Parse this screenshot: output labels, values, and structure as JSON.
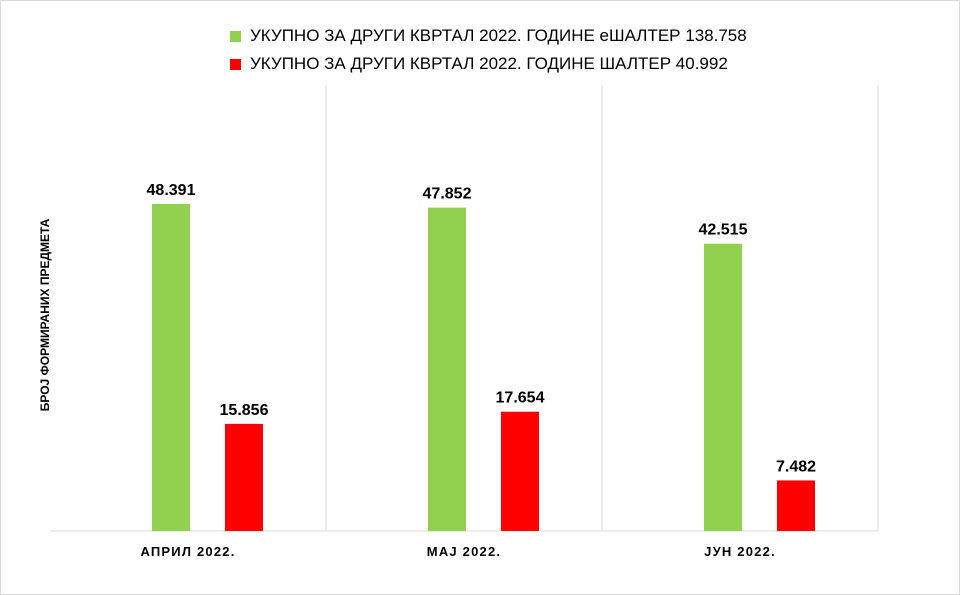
{
  "chart_data": {
    "type": "bar",
    "categories": [
      "АПРИЛ 2022.",
      "МАЈ 2022.",
      "ЈУН 2022."
    ],
    "series": [
      {
        "name": "УКУПНО ЗА ДРУГИ КВРТАЛ 2022.  ГОДИНЕ еШАЛТЕР 138.758",
        "values": [
          48391,
          47852,
          42515
        ],
        "labels": [
          "48.391",
          "47.852",
          "42.515"
        ],
        "color": "#92d050"
      },
      {
        "name": "УКУПНО ЗА ДРУГИ КВРТАЛ 2022.  ГОДИНЕ ШАЛТЕР 40.992",
        "values": [
          15856,
          17654,
          7482
        ],
        "labels": [
          "15.856",
          "17.654",
          "7.482"
        ],
        "color": "#ff0000"
      }
    ],
    "ylabel": "БРОЈ ФОРМИРАНИХ ПРЕДМЕТА",
    "xlabel": "",
    "ylim": [
      0,
      66000
    ],
    "grid": "vertical category separators",
    "legend": "top-center"
  }
}
